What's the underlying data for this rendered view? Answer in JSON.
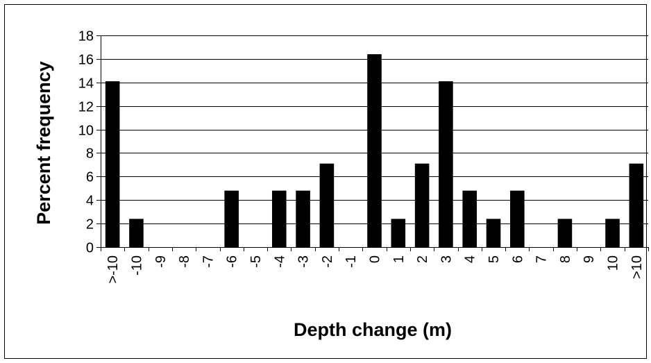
{
  "chart_data": {
    "type": "bar",
    "title": "",
    "xlabel": "Depth change (m)",
    "ylabel": "Percent frequency",
    "categories": [
      ">-10",
      "-10",
      "-9",
      "-8",
      "-7",
      "-6",
      "-5",
      "-4",
      "-3",
      "-2",
      "-1",
      "0",
      "1",
      "2",
      "3",
      "4",
      "5",
      "6",
      "7",
      "8",
      "9",
      "10",
      ">10"
    ],
    "values": [
      14.1,
      2.4,
      0,
      0,
      0,
      4.8,
      0,
      4.8,
      4.8,
      7.1,
      0,
      16.4,
      2.4,
      7.1,
      14.1,
      4.8,
      2.4,
      4.8,
      0,
      2.4,
      0,
      2.4,
      7.1
    ],
    "ylim": [
      0,
      18
    ],
    "yticks": [
      0,
      2,
      4,
      6,
      8,
      10,
      12,
      14,
      16,
      18
    ],
    "grid": true,
    "legend": "none",
    "bar_color": "#000000",
    "grid_color": "#000000"
  }
}
